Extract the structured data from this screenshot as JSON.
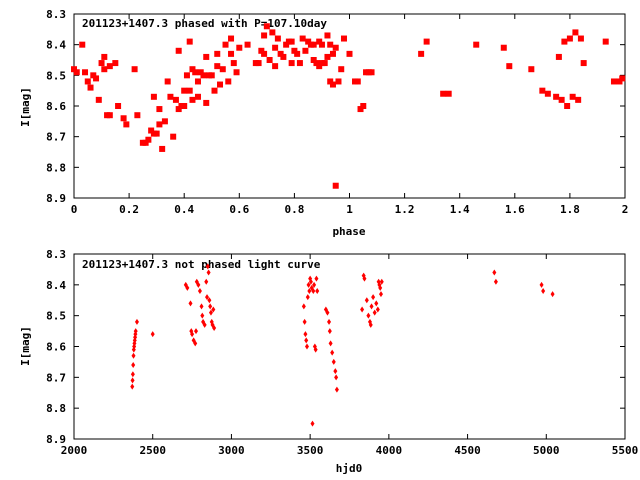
{
  "chart_data": [
    {
      "type": "scatter",
      "title": "201123+1407.3 phased with P=107.10day",
      "xlabel": "phase",
      "ylabel": "I[mag]",
      "xlim": [
        0,
        2
      ],
      "ylim": [
        8.3,
        8.9
      ],
      "y_inverted": true,
      "xticks": [
        "0",
        "0.2",
        "0.4",
        "0.6",
        "0.8",
        "1",
        "1.2",
        "1.4",
        "1.6",
        "1.8",
        "2"
      ],
      "yticks": [
        "8.3",
        "8.4",
        "8.5",
        "8.6",
        "8.7",
        "8.8",
        "8.9"
      ],
      "marker": "square",
      "color": "#ff0000",
      "points": [
        [
          0.0,
          8.48
        ],
        [
          0.01,
          8.49
        ],
        [
          0.03,
          8.4
        ],
        [
          0.04,
          8.49
        ],
        [
          0.05,
          8.52
        ],
        [
          0.06,
          8.54
        ],
        [
          0.07,
          8.5
        ],
        [
          0.08,
          8.51
        ],
        [
          0.09,
          8.58
        ],
        [
          0.1,
          8.46
        ],
        [
          0.11,
          8.48
        ],
        [
          0.11,
          8.44
        ],
        [
          0.12,
          8.63
        ],
        [
          0.13,
          8.47
        ],
        [
          0.13,
          8.63
        ],
        [
          0.15,
          8.46
        ],
        [
          0.16,
          8.6
        ],
        [
          0.18,
          8.64
        ],
        [
          0.19,
          8.66
        ],
        [
          0.22,
          8.48
        ],
        [
          0.23,
          8.63
        ],
        [
          0.25,
          8.72
        ],
        [
          0.26,
          8.72
        ],
        [
          0.27,
          8.71
        ],
        [
          0.28,
          8.68
        ],
        [
          0.29,
          8.57
        ],
        [
          0.29,
          8.69
        ],
        [
          0.3,
          8.69
        ],
        [
          0.31,
          8.66
        ],
        [
          0.31,
          8.61
        ],
        [
          0.32,
          8.74
        ],
        [
          0.33,
          8.65
        ],
        [
          0.34,
          8.52
        ],
        [
          0.35,
          8.57
        ],
        [
          0.36,
          8.7
        ],
        [
          0.37,
          8.58
        ],
        [
          0.38,
          8.61
        ],
        [
          0.38,
          8.42
        ],
        [
          0.39,
          8.6
        ],
        [
          0.4,
          8.6
        ],
        [
          0.4,
          8.55
        ],
        [
          0.41,
          8.5
        ],
        [
          0.42,
          8.55
        ],
        [
          0.42,
          8.39
        ],
        [
          0.43,
          8.58
        ],
        [
          0.43,
          8.48
        ],
        [
          0.44,
          8.49
        ],
        [
          0.45,
          8.57
        ],
        [
          0.45,
          8.52
        ],
        [
          0.46,
          8.49
        ],
        [
          0.47,
          8.5
        ],
        [
          0.48,
          8.44
        ],
        [
          0.48,
          8.59
        ],
        [
          0.49,
          8.5
        ],
        [
          0.5,
          8.5
        ],
        [
          0.51,
          8.55
        ],
        [
          0.52,
          8.43
        ],
        [
          0.52,
          8.47
        ],
        [
          0.53,
          8.53
        ],
        [
          0.54,
          8.48
        ],
        [
          0.55,
          8.4
        ],
        [
          0.56,
          8.52
        ],
        [
          0.57,
          8.43
        ],
        [
          0.57,
          8.38
        ],
        [
          0.58,
          8.46
        ],
        [
          0.59,
          8.49
        ],
        [
          0.6,
          8.41
        ],
        [
          0.63,
          8.4
        ],
        [
          0.66,
          8.46
        ],
        [
          0.67,
          8.46
        ],
        [
          0.68,
          8.42
        ],
        [
          0.69,
          8.43
        ],
        [
          0.69,
          8.37
        ],
        [
          0.7,
          8.34
        ],
        [
          0.71,
          8.45
        ],
        [
          0.72,
          8.36
        ],
        [
          0.73,
          8.47
        ],
        [
          0.73,
          8.41
        ],
        [
          0.74,
          8.38
        ],
        [
          0.75,
          8.43
        ],
        [
          0.76,
          8.44
        ],
        [
          0.77,
          8.4
        ],
        [
          0.78,
          8.39
        ],
        [
          0.79,
          8.39
        ],
        [
          0.79,
          8.46
        ],
        [
          0.8,
          8.42
        ],
        [
          0.81,
          8.43
        ],
        [
          0.82,
          8.46
        ],
        [
          0.83,
          8.38
        ],
        [
          0.84,
          8.42
        ],
        [
          0.85,
          8.39
        ],
        [
          0.86,
          8.4
        ],
        [
          0.87,
          8.45
        ],
        [
          0.87,
          8.4
        ],
        [
          0.88,
          8.46
        ],
        [
          0.89,
          8.47
        ],
        [
          0.89,
          8.39
        ],
        [
          0.9,
          8.46
        ],
        [
          0.9,
          8.4
        ],
        [
          0.91,
          8.46
        ],
        [
          0.92,
          8.44
        ],
        [
          0.92,
          8.37
        ],
        [
          0.93,
          8.4
        ],
        [
          0.93,
          8.52
        ],
        [
          0.94,
          8.43
        ],
        [
          0.94,
          8.53
        ],
        [
          0.95,
          8.86
        ],
        [
          0.95,
          8.41
        ],
        [
          0.96,
          8.52
        ],
        [
          0.97,
          8.48
        ],
        [
          0.98,
          8.38
        ],
        [
          1.0,
          8.43
        ],
        [
          1.02,
          8.52
        ],
        [
          1.03,
          8.52
        ],
        [
          1.04,
          8.61
        ],
        [
          1.05,
          8.6
        ],
        [
          1.06,
          8.49
        ],
        [
          1.07,
          8.49
        ],
        [
          1.08,
          8.49
        ],
        [
          1.26,
          8.43
        ],
        [
          1.28,
          8.39
        ],
        [
          1.34,
          8.56
        ],
        [
          1.36,
          8.56
        ],
        [
          1.46,
          8.4
        ],
        [
          1.56,
          8.41
        ],
        [
          1.58,
          8.47
        ],
        [
          1.66,
          8.48
        ],
        [
          1.7,
          8.55
        ],
        [
          1.72,
          8.56
        ],
        [
          1.75,
          8.57
        ],
        [
          1.76,
          8.44
        ],
        [
          1.77,
          8.58
        ],
        [
          1.78,
          8.39
        ],
        [
          1.79,
          8.6
        ],
        [
          1.8,
          8.38
        ],
        [
          1.81,
          8.57
        ],
        [
          1.82,
          8.36
        ],
        [
          1.83,
          8.58
        ],
        [
          1.84,
          8.38
        ],
        [
          1.85,
          8.46
        ],
        [
          1.93,
          8.39
        ],
        [
          1.96,
          8.52
        ],
        [
          1.98,
          8.52
        ],
        [
          1.99,
          8.51
        ]
      ]
    },
    {
      "type": "scatter",
      "title": "201123+1407.3 not phased light curve",
      "xlabel": "hjd0",
      "ylabel": "I[mag]",
      "xlim": [
        2000,
        5500
      ],
      "ylim": [
        8.3,
        8.9
      ],
      "y_inverted": true,
      "xticks": [
        "2000",
        "2500",
        "3000",
        "3500",
        "4000",
        "4500",
        "5000",
        "5500"
      ],
      "yticks": [
        "8.3",
        "8.4",
        "8.5",
        "8.6",
        "8.7",
        "8.8",
        "8.9"
      ],
      "marker": "diamond",
      "color": "#ff0000",
      "points": [
        [
          2370,
          8.73
        ],
        [
          2372,
          8.71
        ],
        [
          2374,
          8.69
        ],
        [
          2376,
          8.66
        ],
        [
          2378,
          8.63
        ],
        [
          2380,
          8.61
        ],
        [
          2382,
          8.6
        ],
        [
          2384,
          8.59
        ],
        [
          2386,
          8.58
        ],
        [
          2388,
          8.57
        ],
        [
          2390,
          8.56
        ],
        [
          2392,
          8.55
        ],
        [
          2400,
          8.52
        ],
        [
          2500,
          8.56
        ],
        [
          2710,
          8.4
        ],
        [
          2720,
          8.41
        ],
        [
          2740,
          8.46
        ],
        [
          2745,
          8.55
        ],
        [
          2750,
          8.56
        ],
        [
          2760,
          8.58
        ],
        [
          2770,
          8.59
        ],
        [
          2775,
          8.55
        ],
        [
          2780,
          8.39
        ],
        [
          2790,
          8.4
        ],
        [
          2800,
          8.42
        ],
        [
          2810,
          8.47
        ],
        [
          2815,
          8.5
        ],
        [
          2820,
          8.52
        ],
        [
          2830,
          8.53
        ],
        [
          2840,
          8.39
        ],
        [
          2845,
          8.44
        ],
        [
          2850,
          8.34
        ],
        [
          2855,
          8.36
        ],
        [
          2860,
          8.45
        ],
        [
          2865,
          8.47
        ],
        [
          2870,
          8.49
        ],
        [
          2875,
          8.52
        ],
        [
          2880,
          8.53
        ],
        [
          2885,
          8.48
        ],
        [
          2890,
          8.54
        ],
        [
          3460,
          8.47
        ],
        [
          3465,
          8.52
        ],
        [
          3470,
          8.56
        ],
        [
          3475,
          8.58
        ],
        [
          3480,
          8.6
        ],
        [
          3485,
          8.44
        ],
        [
          3490,
          8.4
        ],
        [
          3495,
          8.42
        ],
        [
          3500,
          8.38
        ],
        [
          3505,
          8.39
        ],
        [
          3510,
          8.41
        ],
        [
          3515,
          8.85
        ],
        [
          3520,
          8.42
        ],
        [
          3525,
          8.4
        ],
        [
          3530,
          8.6
        ],
        [
          3535,
          8.61
        ],
        [
          3540,
          8.38
        ],
        [
          3545,
          8.42
        ],
        [
          3600,
          8.48
        ],
        [
          3610,
          8.49
        ],
        [
          3620,
          8.52
        ],
        [
          3625,
          8.55
        ],
        [
          3630,
          8.59
        ],
        [
          3640,
          8.62
        ],
        [
          3650,
          8.65
        ],
        [
          3660,
          8.68
        ],
        [
          3665,
          8.7
        ],
        [
          3670,
          8.74
        ],
        [
          3830,
          8.48
        ],
        [
          3840,
          8.37
        ],
        [
          3845,
          8.38
        ],
        [
          3860,
          8.45
        ],
        [
          3870,
          8.5
        ],
        [
          3880,
          8.52
        ],
        [
          3885,
          8.53
        ],
        [
          3890,
          8.47
        ],
        [
          3900,
          8.44
        ],
        [
          3910,
          8.49
        ],
        [
          3920,
          8.46
        ],
        [
          3930,
          8.48
        ],
        [
          3935,
          8.39
        ],
        [
          3940,
          8.4
        ],
        [
          3945,
          8.41
        ],
        [
          3950,
          8.43
        ],
        [
          3955,
          8.39
        ],
        [
          4670,
          8.36
        ],
        [
          4680,
          8.39
        ],
        [
          4970,
          8.4
        ],
        [
          4980,
          8.42
        ],
        [
          5040,
          8.43
        ]
      ]
    }
  ]
}
